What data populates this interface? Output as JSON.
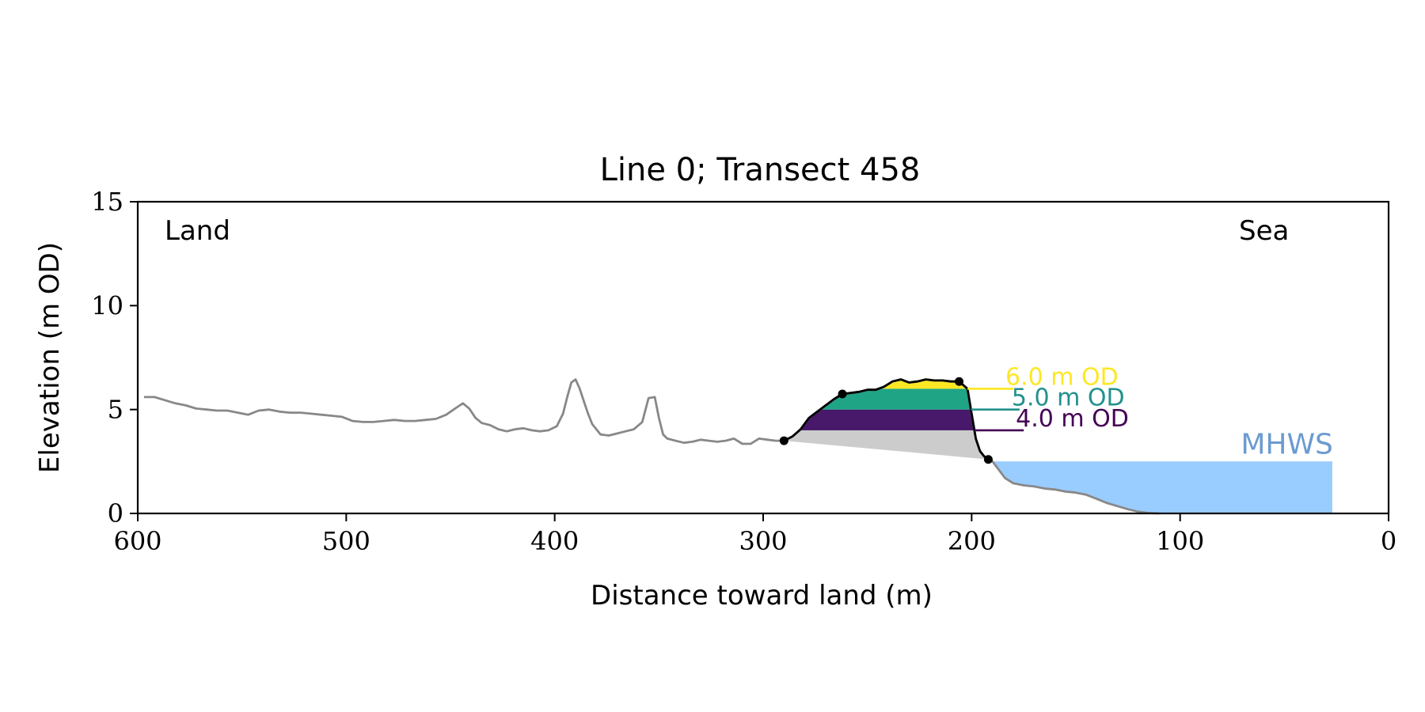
{
  "chart_data": {
    "type": "line",
    "title": "Line 0; Transect 458",
    "xlabel": "Distance toward land (m)",
    "ylabel": "Elevation (m OD)",
    "xlim": [
      600,
      0
    ],
    "ylim": [
      0,
      15
    ],
    "x_ticks": [
      "600",
      "500",
      "400",
      "300",
      "200",
      "100",
      "0"
    ],
    "y_ticks": [
      "0",
      "5",
      "10",
      "15"
    ],
    "grid": false,
    "legend": "none",
    "annotations": {
      "left": "Land",
      "right": "Sea",
      "mhws_label": "MHWS"
    },
    "profile": {
      "color": "#888888",
      "x": [
        597,
        592,
        587,
        582,
        577,
        572,
        567,
        562,
        557,
        552,
        547,
        542,
        537,
        532,
        527,
        522,
        517,
        512,
        507,
        502,
        497,
        492,
        487,
        482,
        477,
        472,
        467,
        462,
        457,
        452,
        447,
        444,
        441,
        438,
        435,
        431,
        427,
        423,
        419,
        415,
        411,
        407,
        403,
        399,
        396,
        394,
        392,
        390,
        388,
        386,
        384,
        382,
        378,
        374,
        370,
        366,
        362,
        358,
        355,
        352,
        350,
        348,
        346,
        342,
        338,
        334,
        330,
        326,
        322,
        318,
        314,
        310,
        306,
        302,
        298,
        294,
        290,
        286,
        282,
        278,
        274,
        270,
        266,
        262,
        258,
        254,
        250,
        246,
        242,
        238,
        234,
        230,
        226,
        222,
        218,
        214,
        210,
        206,
        202,
        200,
        198,
        196,
        194,
        192,
        190,
        187,
        184,
        180,
        175,
        170,
        165,
        160,
        155,
        150,
        145,
        140,
        135,
        130,
        125,
        120,
        115,
        110
      ],
      "y": [
        5.6,
        5.6,
        5.45,
        5.3,
        5.2,
        5.05,
        5.0,
        4.95,
        4.95,
        4.85,
        4.75,
        4.95,
        5.0,
        4.9,
        4.85,
        4.85,
        4.8,
        4.75,
        4.7,
        4.65,
        4.45,
        4.4,
        4.4,
        4.45,
        4.5,
        4.45,
        4.45,
        4.5,
        4.55,
        4.75,
        5.1,
        5.3,
        5.05,
        4.6,
        4.35,
        4.25,
        4.05,
        3.95,
        4.05,
        4.1,
        4.0,
        3.95,
        4.0,
        4.2,
        4.8,
        5.6,
        6.3,
        6.45,
        6.0,
        5.4,
        4.8,
        4.3,
        3.8,
        3.75,
        3.85,
        3.95,
        4.05,
        4.4,
        5.55,
        5.6,
        4.6,
        3.8,
        3.6,
        3.5,
        3.4,
        3.45,
        3.55,
        3.5,
        3.45,
        3.5,
        3.6,
        3.35,
        3.35,
        3.6,
        3.55,
        3.5,
        3.5,
        3.7,
        4.05,
        4.6,
        4.9,
        5.2,
        5.5,
        5.75,
        5.8,
        5.85,
        5.95,
        5.95,
        6.1,
        6.35,
        6.45,
        6.3,
        6.35,
        6.45,
        6.4,
        6.4,
        6.35,
        6.35,
        6.0,
        4.8,
        3.6,
        3.0,
        2.75,
        2.6,
        2.5,
        2.1,
        1.7,
        1.45,
        1.35,
        1.3,
        1.2,
        1.15,
        1.05,
        1.0,
        0.9,
        0.7,
        0.5,
        0.35,
        0.2,
        0.08,
        0.02,
        0.0
      ]
    },
    "dune_outline": {
      "color": "#000000",
      "x": [
        290,
        286,
        282,
        278,
        274,
        270,
        266,
        262,
        258,
        254,
        250,
        246,
        242,
        238,
        234,
        230,
        226,
        222,
        218,
        214,
        210,
        206,
        202,
        200,
        198,
        196,
        194,
        192
      ],
      "y": [
        3.5,
        3.7,
        4.05,
        4.6,
        4.9,
        5.2,
        5.5,
        5.75,
        5.8,
        5.85,
        5.95,
        5.95,
        6.1,
        6.35,
        6.45,
        6.3,
        6.35,
        6.45,
        6.4,
        6.4,
        6.35,
        6.35,
        6.0,
        4.8,
        3.6,
        3.0,
        2.75,
        2.6
      ],
      "markers": [
        [
          290,
          3.5
        ],
        [
          262,
          5.75
        ],
        [
          206,
          6.35
        ],
        [
          192,
          2.6
        ]
      ]
    },
    "dune_base": {
      "color": "#cccccc",
      "from": [
        290,
        3.5
      ],
      "to": [
        192,
        2.6
      ]
    },
    "elevation_bands": [
      {
        "label": "4.0 m OD",
        "lower": 0,
        "upper": 4.0,
        "color": "#cccccc",
        "line_color": "#440154",
        "line_to_x": 175
      },
      {
        "label": "5.0 m OD",
        "lower": 4.0,
        "upper": 5.0,
        "color": "#48186a",
        "line_color": "#21918c",
        "line_to_x": 177
      },
      {
        "label": "6.0 m OD",
        "lower": 5.0,
        "upper": 6.0,
        "color": "#20a486",
        "line_color": "#fde725",
        "line_to_x": 180
      },
      {
        "label": "",
        "lower": 6.0,
        "upper": 20,
        "color": "#fde725",
        "line_color": "",
        "line_to_x": 0
      }
    ],
    "mhws": {
      "elevation": 2.5,
      "from_x": 192,
      "to_x": 27,
      "color": "#99ccff",
      "label_color": "#6b9bd1"
    }
  }
}
